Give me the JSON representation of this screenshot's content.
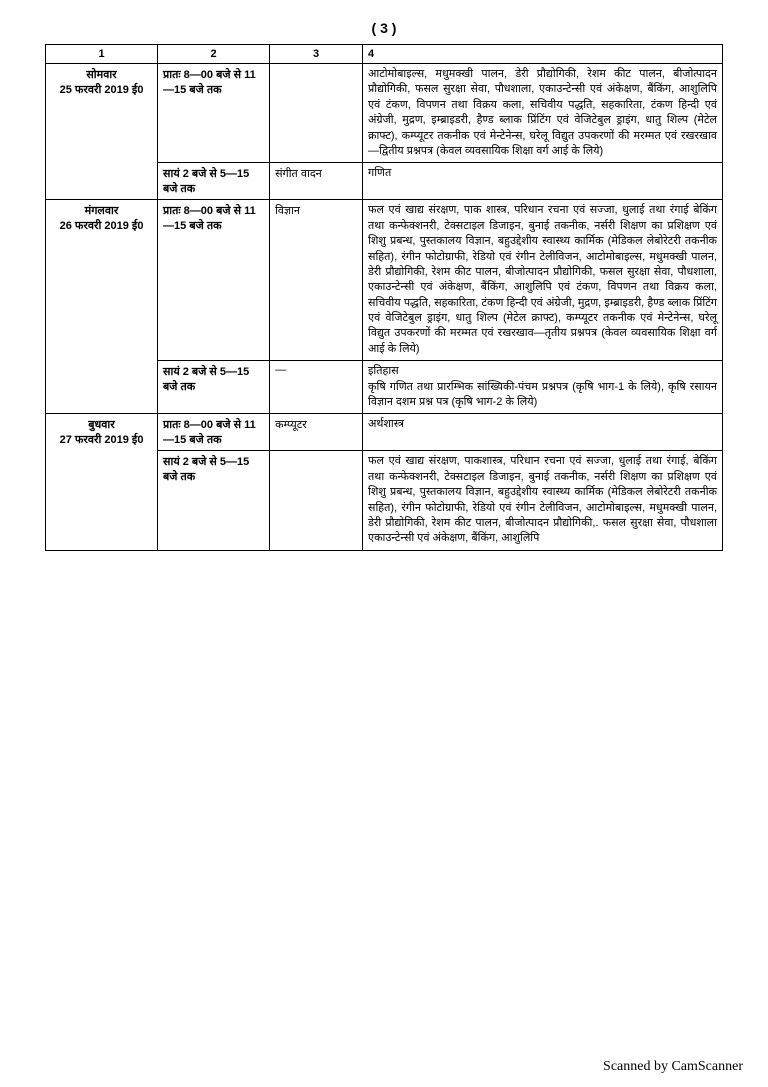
{
  "page_number": "( 3 )",
  "header": {
    "c1": "1",
    "c2": "2",
    "c3": "3",
    "c4": "4"
  },
  "rows": [
    {
      "day": "सोमवार\n25 फरवरी 2019 ई0",
      "slots": [
        {
          "time": "प्रातः 8—00 बजे से 11—15 बजे तक",
          "col3": "",
          "col4": "आटोमोबाइल्स, मधुमक्खी पालन, डेरी प्रौद्योगिकी, रेशम कीट पालन, बीजोत्पादन प्रौद्योगिकी, फसल सुरक्षा सेवा, पौधशाला, एकाउन्टेन्सी एवं अंकेक्षण, बैंकिंग, आशुलिपि एवं टंकण, विपणन तथा विक्रय कला, सचिवीय पद्धति, सहकारिता, टंकण हिन्दी एवं अंग्रेजी, मुद्रण, इम्ब्राइडरी, हैण्ड ब्लाक प्रिंटिंग एवं वेजिटेबुल ड्राइंग, धातु शिल्प (मेटेल क्राफ्ट), कम्प्यूटर तकनीक एवं मेन्टेनेन्स, घरेलू विद्युत उपकरणों की मरम्मत एवं रखरखाव—द्वितीय प्रश्नपत्र (केवल व्यवसायिक शिक्षा वर्ग आई के लिये)"
        },
        {
          "time": "सायं 2 बजे से 5—15 बजे तक",
          "col3": "संगीत वादन",
          "col4": "गणित"
        }
      ]
    },
    {
      "day": "मंगलवार\n26 फरवरी 2019 ई0",
      "slots": [
        {
          "time": "प्रातः 8—00 बजे से 11—15 बजे तक",
          "col3": "विज्ञान",
          "col4": "फल एवं खाद्य संरक्षण, पाक शास्त्र, परिधान रचना एवं सज्जा, धुलाई तथा रंगाई बेकिंग तथा कन्फेक्शनरी, टेक्सटाइल डिजाइन, बुनाई तकनीक, नर्सरी शिक्षण का प्रशिक्षण एवं शिशु प्रबन्ध, पुस्तकालय विज्ञान, बहुउद्देशीय स्वास्थ्य कार्मिक (मेडिकल लेबोरेटरी तकनीक सहित), रंगीन फोटोग्राफी, रेडियो एवं रंगीन टेलीविजन, आटोमोबाइल्स, मधुमक्खी पालन, डेरी प्रौद्योगिकी, रेशम कीट पालन, बीजोत्पादन प्रौद्योगिकी, फसल सुरक्षा सेवा, पौधशाला, एकाउन्टेन्सी एवं अंकेक्षण, बैंकिंग, आशुलिपि एवं टंकण, विपणन तथा विक्रय कला, सचिवीय पद्धति, सहकारिता, टंकण हिन्दी एवं अंग्रेजी, मुद्रण, इम्ब्राइडरी, हैण्ड ब्लाक प्रिंटिंग एवं वेजिटेबुल ड्राइंग, धातु शिल्प (मेटेल क्राफ्ट), कम्प्यूटर तकनीक एवं मेन्टेनेन्स, घरेलू विद्युत उपकरणों की मरम्मत एवं रखरखाव—तृतीय प्रश्नपत्र (केवल व्यवसायिक शिक्षा वर्ग आई के लिये)"
        },
        {
          "time": "सायं 2 बजे से 5—15 बजे तक",
          "col3": "—",
          "col4": "इतिहास\nकृषि गणित तथा प्रारम्भिक सांख्यिकी-पंचम प्रश्नपत्र (कृषि भाग-1 के लिये), कृषि रसायन विज्ञान दशम प्रश्न पत्र (कृषि भाग-2 के लिये)"
        }
      ]
    },
    {
      "day": "बुधवार\n27 फरवरी 2019 ई0",
      "slots": [
        {
          "time": "प्रातः 8—00 बजे से 11—15 बजे तक",
          "col3": "कम्प्यूटर",
          "col4": "अर्थशास्त्र"
        },
        {
          "time": "सायं 2 बजे से 5—15 बजे तक",
          "col3": "",
          "col4": "फल एवं खाद्य संरक्षण, पाकशास्त्र, परिधान रचना एवं सज्जा, धुलाई तथा रंगाई, बेकिंग तथा कन्फेक्शनरी, टेक्सटाइल डिजाइन, बुनाई तकनीक, नर्सरी शिक्षण का प्रशिक्षण एवं शिशु प्रबन्ध, पुस्तकालय विज्ञान, बहुउद्देशीय स्वास्थ्य कार्मिक (मेडिकल लेबोरेटरी तकनीक सहित), रंगीन फोटोग्राफी, रेडियो एवं रंगीन टेलीविजन, आटोमोबाइल्स, मधुमक्खी पालन, डेरी प्रौद्योगिकी, रेशम कीट पालन, बीजोत्पादन प्रौद्योगिकी,. फसल सुरक्षा सेवा, पौधशाला एकाउन्टेन्सी एवं अंकेक्षण, बैंकिंग, आशुलिपि"
        }
      ]
    }
  ],
  "footer": "Scanned by CamScanner"
}
